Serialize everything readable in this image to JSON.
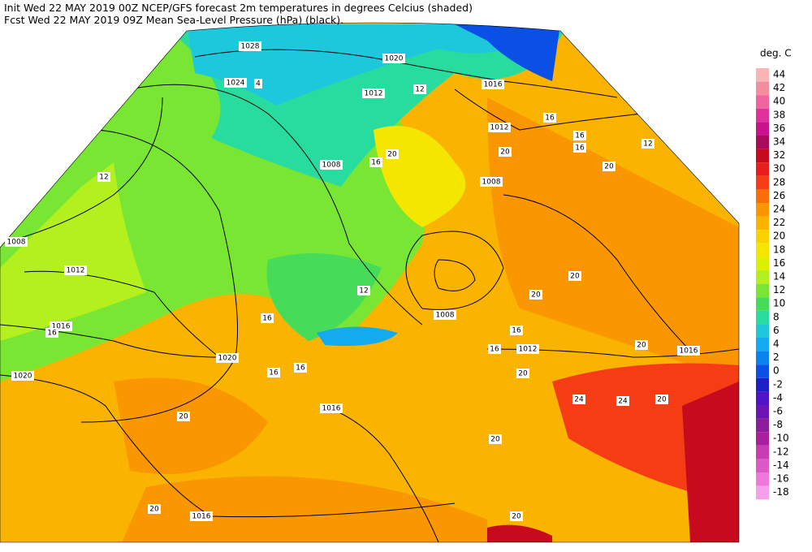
{
  "header": {
    "line1": "Init  Wed 22 MAY 2019 00Z  NCEP/GFS forecast 2m temperatures in degrees Celcius (shaded)",
    "line2": "Fcst Wed 22 MAY 2019 09Z  Mean Sea-Level Pressure (hPa) (black)."
  },
  "legend": {
    "title": "deg. C",
    "entries": [
      {
        "label": "44",
        "color": "#f9b4b4"
      },
      {
        "label": "42",
        "color": "#f58ca0"
      },
      {
        "label": "40",
        "color": "#f064a0"
      },
      {
        "label": "38",
        "color": "#e0329a"
      },
      {
        "label": "36",
        "color": "#c8148c"
      },
      {
        "label": "34",
        "color": "#aa0a5a"
      },
      {
        "label": "32",
        "color": "#c80a1e"
      },
      {
        "label": "30",
        "color": "#e61e1e"
      },
      {
        "label": "28",
        "color": "#f53c14"
      },
      {
        "label": "26",
        "color": "#fa6e0a"
      },
      {
        "label": "24",
        "color": "#fa9600"
      },
      {
        "label": "22",
        "color": "#fab400"
      },
      {
        "label": "20",
        "color": "#fad200"
      },
      {
        "label": "18",
        "color": "#f5e600"
      },
      {
        "label": "16",
        "color": "#dcf000"
      },
      {
        "label": "14",
        "color": "#b4f01e"
      },
      {
        "label": "12",
        "color": "#78e632"
      },
      {
        "label": "10",
        "color": "#46dc5a"
      },
      {
        "label": "8",
        "color": "#28dca0"
      },
      {
        "label": "6",
        "color": "#1ec8dc"
      },
      {
        "label": "4",
        "color": "#14aaf0"
      },
      {
        "label": "2",
        "color": "#0a82f0"
      },
      {
        "label": "0",
        "color": "#0a50e6"
      },
      {
        "label": "-2",
        "color": "#1e1ec8"
      },
      {
        "label": "-4",
        "color": "#5014c8"
      },
      {
        "label": "-6",
        "color": "#6e14b4"
      },
      {
        "label": "-8",
        "color": "#8c1e9b"
      },
      {
        "label": "-10",
        "color": "#aa1ea0"
      },
      {
        "label": "-12",
        "color": "#c83cb4"
      },
      {
        "label": "-14",
        "color": "#dc5ac8"
      },
      {
        "label": "-16",
        "color": "#f078dc"
      },
      {
        "label": "-18",
        "color": "#f5a0eb"
      }
    ]
  },
  "map": {
    "isobar_labels": [
      "1028",
      "1020",
      "1024",
      "1016",
      "1012",
      "1012",
      "1008",
      "1008",
      "1008",
      "1012",
      "1016",
      "1020",
      "1020",
      "1012",
      "1016",
      "1008",
      "1016",
      "1016"
    ],
    "temperature_labels": [
      "4",
      "12",
      "16",
      "16",
      "16",
      "12",
      "20",
      "20",
      "12",
      "20",
      "16",
      "12",
      "16",
      "16",
      "20",
      "20",
      "16",
      "16",
      "20",
      "20",
      "24",
      "24",
      "20",
      "20",
      "20",
      "20",
      "20",
      "16",
      "16"
    ]
  }
}
